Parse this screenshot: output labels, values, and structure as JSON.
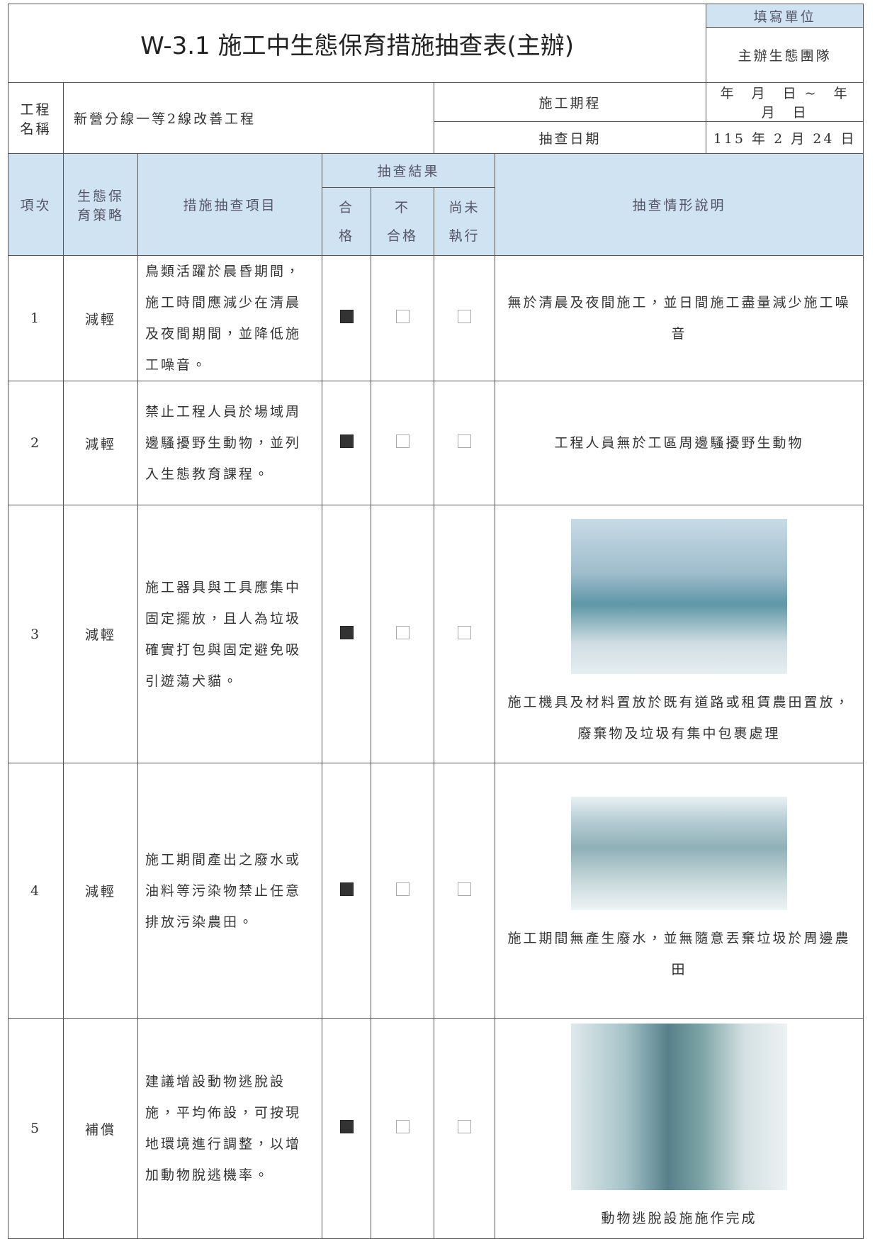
{
  "header": {
    "title": "W-3.1 施工中生態保育措施抽查表(主辦)",
    "unit_label": "填寫單位",
    "unit": "主辦生態團隊"
  },
  "project": {
    "name_label": "工程\n名稱",
    "name": "新營分線一等2線改善工程",
    "period_label": "施工期程",
    "period": "年　月　日 ~　年　月　日",
    "date_label": "抽查日期",
    "date": "115 年 2 月 24 日"
  },
  "columns": {
    "no": "項次",
    "strategy": "生態保\n育策略",
    "item": "措施抽查項目",
    "result": "抽查結果",
    "pass": "合\n格",
    "fail": "不\n合格",
    "pending": "尚未\n執行",
    "note": "抽查情形說明"
  },
  "rows": [
    {
      "no": "1",
      "strategy": "減輕",
      "item": "鳥類活躍於晨昏期間，施工時間應減少在清晨及夜間期間，並降低施工噪音。",
      "status": [
        true,
        false,
        false
      ],
      "note": "無於清晨及夜間施工，並日間施工盡量減少施工噪音"
    },
    {
      "no": "2",
      "strategy": "減輕",
      "item": "禁止工程人員於場域周邊騷擾野生動物，並列入生態教育課程。",
      "status": [
        true,
        false,
        false
      ],
      "note": "工程人員無於工區周邊騷擾野生動物"
    },
    {
      "no": "3",
      "strategy": "減輕",
      "item": "施工器具與工具應集中固定擺放，且人為垃圾確實打包與固定避免吸引遊蕩犬貓。",
      "status": [
        true,
        false,
        false
      ],
      "note": "施工機具及材料置放於既有道路或租賃農田置放，廢棄物及垃圾有集中包裹處理"
    },
    {
      "no": "4",
      "strategy": "減輕",
      "item": "施工期間產出之廢水或油料等污染物禁止任意排放污染農田。",
      "status": [
        true,
        false,
        false
      ],
      "note": "施工期間無產生廢水，並無隨意丟棄垃圾於周邊農田"
    },
    {
      "no": "5",
      "strategy": "補償",
      "item": "建議增設動物逃脫設施，平均佈設，可按現地環境進行調整，以增加動物脫逃機率。",
      "status": [
        true,
        false,
        false
      ],
      "note": "動物逃脫設施施作完成"
    }
  ]
}
